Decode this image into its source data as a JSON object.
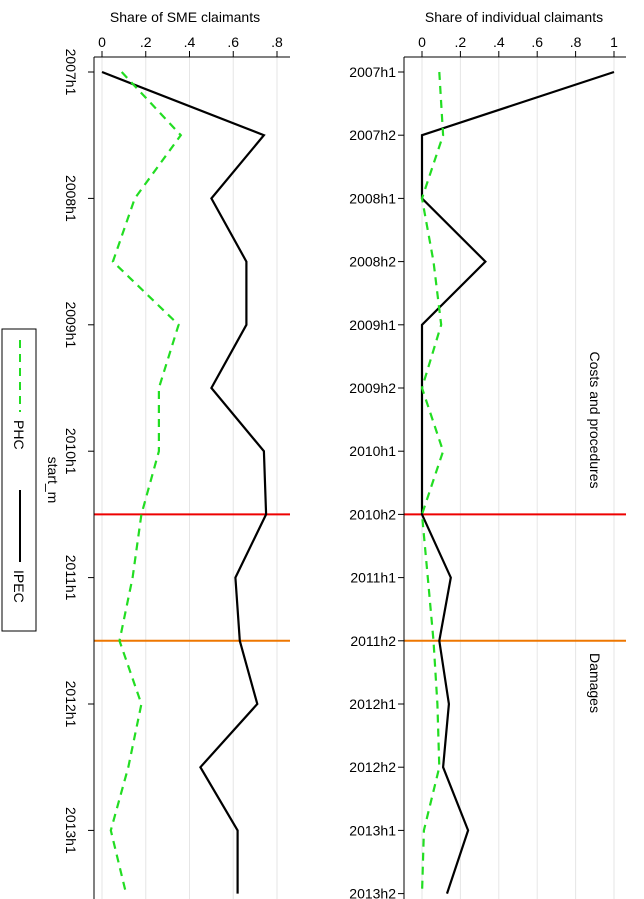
{
  "chart_data": [
    {
      "type": "line",
      "orientation": "vertical-time",
      "title": "",
      "xlabel": "Share of SME claimants",
      "ylabel": "start_m",
      "xlim": [
        0,
        0.83
      ],
      "ylim": [
        "2007h1",
        "2013h2"
      ],
      "x_ticks": [
        0,
        0.2,
        0.4,
        0.6,
        0.8
      ],
      "x_tick_labels": [
        "0",
        ".2",
        ".4",
        ".6",
        ".8"
      ],
      "y_tick_labels": [
        "2007h1",
        "2008h1",
        "2009h1",
        "2010h1",
        "2011h1",
        "2012h1",
        "2013h1"
      ],
      "y_tick_label_rotation": "rotated",
      "grid": true,
      "periods": [
        "2007h1",
        "2007h2",
        "2008h1",
        "2008h2",
        "2009h1",
        "2009h2",
        "2010h1",
        "2010h2",
        "2011h1",
        "2011h2",
        "2012h1",
        "2012h2",
        "2013h1",
        "2013h2"
      ],
      "series": [
        {
          "name": "IPEC",
          "color": "#000000",
          "dash": "solid",
          "values": [
            0.0,
            0.74,
            0.5,
            0.66,
            0.66,
            0.5,
            0.74,
            0.75,
            0.61,
            0.63,
            0.71,
            0.45,
            0.62,
            0.62
          ]
        },
        {
          "name": "PHC",
          "color": "#22dd22",
          "dash": "dashed",
          "values": [
            0.09,
            0.36,
            0.15,
            0.05,
            0.35,
            0.26,
            0.26,
            0.18,
            0.14,
            0.08,
            0.18,
            0.12,
            0.04,
            0.11
          ]
        }
      ],
      "reference_lines": [
        {
          "at": "2010h2",
          "color": "#ee0000"
        },
        {
          "at": "2011h2",
          "color": "#ee7700"
        }
      ]
    },
    {
      "type": "line",
      "orientation": "vertical-time",
      "title": "",
      "xlabel": "Share of individual claimants",
      "ylabel": "",
      "xlim": [
        -0.04,
        1.04
      ],
      "ylim": [
        "2007h1",
        "2013h2"
      ],
      "x_ticks": [
        0,
        0.2,
        0.4,
        0.6,
        0.8,
        1
      ],
      "x_tick_labels": [
        "0",
        ".2",
        ".4",
        ".6",
        ".8",
        "1"
      ],
      "y_tick_labels": [
        "2007h1",
        "2007h2",
        "2008h1",
        "2008h2",
        "2009h1",
        "2009h2",
        "2010h1",
        "2010h2",
        "2011h1",
        "2011h2",
        "2012h1",
        "2012h2",
        "2013h1",
        "2013h2"
      ],
      "grid": true,
      "periods": [
        "2007h1",
        "2007h2",
        "2008h1",
        "2008h2",
        "2009h1",
        "2009h2",
        "2010h1",
        "2010h2",
        "2011h1",
        "2011h2",
        "2012h1",
        "2012h2",
        "2013h1",
        "2013h2"
      ],
      "series": [
        {
          "name": "IPEC",
          "color": "#000000",
          "dash": "solid",
          "values": [
            1.0,
            0.0,
            0.0,
            0.33,
            0.0,
            0.0,
            0.0,
            0.0,
            0.15,
            0.09,
            0.14,
            0.11,
            0.24,
            0.13
          ]
        },
        {
          "name": "PHC",
          "color": "#22dd22",
          "dash": "dashed",
          "values": [
            0.09,
            0.11,
            0.0,
            0.06,
            0.1,
            0.0,
            0.11,
            0.0,
            0.03,
            0.06,
            0.08,
            0.09,
            0.01,
            0.0
          ]
        }
      ],
      "reference_lines": [
        {
          "at": "2010h2",
          "color": "#ee0000"
        },
        {
          "at": "2011h2",
          "color": "#ee7700"
        }
      ],
      "annotations": [
        {
          "text": "Costs and procedures",
          "between": [
            "2007h2",
            "2010h2"
          ]
        },
        {
          "text": "Damages",
          "between": [
            "2010h2",
            "2013h2"
          ]
        }
      ]
    }
  ],
  "legend": {
    "placement": "left",
    "entries": [
      {
        "label": "PHC",
        "color": "#22dd22",
        "dash": "dashed"
      },
      {
        "label": "IPEC",
        "color": "#000000",
        "dash": "solid"
      }
    ]
  }
}
